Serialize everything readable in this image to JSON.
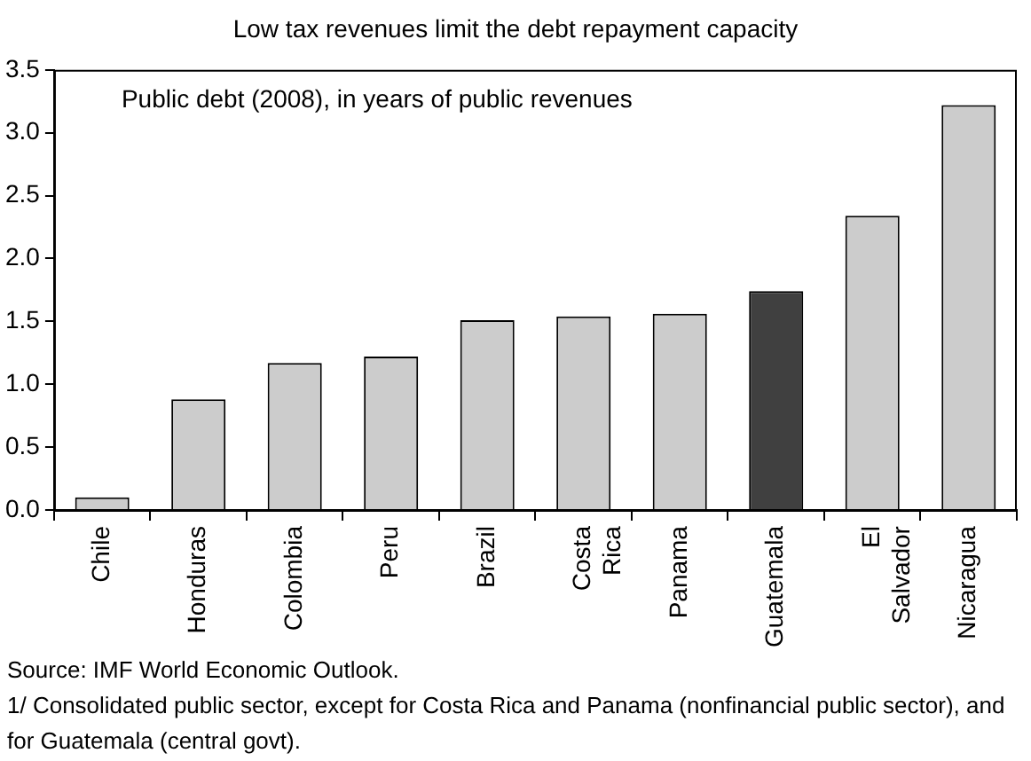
{
  "chart_data": {
    "type": "bar",
    "title": "Low tax revenues limit the debt repayment capacity",
    "categories": [
      "Chile",
      "Honduras",
      "Colombia",
      "Peru",
      "Brazil",
      "Costa Rica",
      "Panama",
      "Guatemala",
      "El Salvador",
      "Nicaragua"
    ],
    "values": [
      0.1,
      0.88,
      1.17,
      1.22,
      1.51,
      1.54,
      1.56,
      1.74,
      2.34,
      3.22
    ],
    "colors": [
      "#cccccc",
      "#cccccc",
      "#cccccc",
      "#cccccc",
      "#cccccc",
      "#cccccc",
      "#cccccc",
      "#404040",
      "#cccccc",
      "#cccccc"
    ],
    "ylim": [
      0,
      3.5
    ],
    "yticks": [
      {
        "value": 0,
        "label": "0.0"
      },
      0.5,
      {
        "value": 1,
        "label": "1.0"
      },
      1.5,
      {
        "value": 2,
        "label": "2.0"
      },
      2.5,
      {
        "value": 3,
        "label": "3.0"
      },
      3.5
    ],
    "grid": false,
    "legend": false,
    "annotations": [
      "Public debt (2008), in years of public revenues",
      "Source: IMF World Economic Outlook.",
      "1/ Consolidated public sector, except for Costa Rica and Panama (nonfinancial public sector), and for Guatemala (central govt)."
    ]
  }
}
